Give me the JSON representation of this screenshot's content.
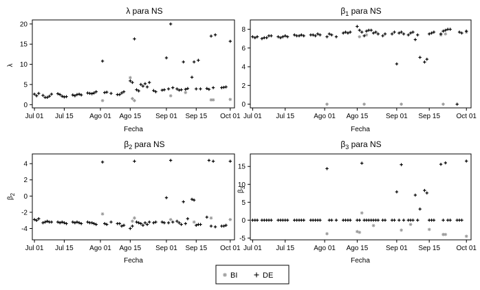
{
  "colors": {
    "BI": "#999999",
    "DE": "#000000"
  },
  "legend": {
    "placement": "bottom-center",
    "items": [
      {
        "label": "BI",
        "marker": "asterisk",
        "color": "#999999"
      },
      {
        "label": "DE",
        "marker": "plus",
        "color": "#000000"
      }
    ]
  },
  "chart_data": [
    {
      "type": "scatter",
      "title": "λ para NS",
      "xlabel": "Fecha",
      "ylabel": "λ",
      "xlim": [
        "2012-06-30",
        "2012-10-03"
      ],
      "ylim": [
        -0.8,
        21
      ],
      "x_ticks": [
        {
          "date": "2012-07-01",
          "label": "Jul 01"
        },
        {
          "date": "2012-07-15",
          "label": "Jul 15"
        },
        {
          "date": "2012-08-01",
          "label": "Ago 01"
        },
        {
          "date": "2012-08-15",
          "label": "Ago 15"
        },
        {
          "date": "2012-09-01",
          "label": "Sep 01"
        },
        {
          "date": "2012-09-15",
          "label": "Sep 15"
        },
        {
          "date": "2012-10-01",
          "label": "Oct 01"
        }
      ],
      "y_ticks": [
        0,
        5,
        10,
        15,
        20
      ],
      "grid": false,
      "series": [
        {
          "name": "BI",
          "x": [
            "2012-08-02",
            "2012-08-15",
            "2012-08-16",
            "2012-08-17",
            "2012-09-03",
            "2012-09-10",
            "2012-09-22",
            "2012-09-23",
            "2012-10-01"
          ],
          "y": [
            1.0,
            6.7,
            1.5,
            1.0,
            2.2,
            3.0,
            1.2,
            1.2,
            1.3
          ]
        },
        {
          "name": "DE",
          "x": [
            "2012-07-01",
            "2012-07-02",
            "2012-07-03",
            "2012-07-05",
            "2012-07-06",
            "2012-07-07",
            "2012-07-08",
            "2012-07-09",
            "2012-07-12",
            "2012-07-13",
            "2012-07-14",
            "2012-07-15",
            "2012-07-16",
            "2012-07-19",
            "2012-07-20",
            "2012-07-21",
            "2012-07-22",
            "2012-07-23",
            "2012-07-26",
            "2012-07-27",
            "2012-07-28",
            "2012-07-29",
            "2012-07-30",
            "2012-08-02",
            "2012-08-03",
            "2012-08-04",
            "2012-08-06",
            "2012-08-09",
            "2012-08-10",
            "2012-08-11",
            "2012-08-12",
            "2012-08-15",
            "2012-08-16",
            "2012-08-17",
            "2012-08-18",
            "2012-08-19",
            "2012-08-20",
            "2012-08-21",
            "2012-08-22",
            "2012-08-23",
            "2012-08-24",
            "2012-08-26",
            "2012-08-27",
            "2012-08-30",
            "2012-08-31",
            "2012-09-01",
            "2012-09-02",
            "2012-09-03",
            "2012-09-04",
            "2012-09-06",
            "2012-09-07",
            "2012-09-08",
            "2012-09-09",
            "2012-09-10",
            "2012-09-11",
            "2012-09-13",
            "2012-09-14",
            "2012-09-15",
            "2012-09-16",
            "2012-09-17",
            "2012-09-20",
            "2012-09-21",
            "2012-09-22",
            "2012-09-23",
            "2012-09-24",
            "2012-09-27",
            "2012-09-28",
            "2012-09-29",
            "2012-10-01"
          ],
          "y": [
            2.6,
            2.2,
            2.8,
            2.3,
            1.8,
            1.8,
            2.1,
            2.6,
            2.7,
            2.5,
            2.1,
            1.9,
            2.0,
            2.4,
            2.2,
            2.5,
            2.6,
            2.4,
            2.9,
            2.8,
            2.7,
            2.9,
            3.2,
            10.8,
            3.0,
            3.1,
            2.8,
            2.5,
            2.5,
            2.9,
            3.2,
            5.9,
            5.5,
            16.3,
            3.7,
            3.4,
            5.0,
            4.6,
            5.2,
            4.4,
            5.5,
            3.5,
            3.2,
            3.6,
            3.7,
            11.6,
            3.9,
            20.0,
            4.2,
            3.9,
            3.6,
            3.7,
            10.6,
            3.8,
            4.0,
            6.8,
            10.6,
            3.9,
            11.0,
            3.9,
            4.0,
            3.8,
            17.0,
            4.2,
            17.3,
            4.2,
            4.3,
            4.4,
            15.7
          ]
        }
      ]
    },
    {
      "type": "scatter",
      "title": "β1 para NS",
      "title_base": "β",
      "title_sub": "1",
      "title_rest": " para NS",
      "xlabel": "Fecha",
      "ylabel": "",
      "xlim": [
        "2012-06-30",
        "2012-10-03"
      ],
      "ylim": [
        -0.4,
        9.0
      ],
      "x_ticks": [
        {
          "date": "2012-07-01",
          "label": "Jul 01"
        },
        {
          "date": "2012-07-15",
          "label": "Jul 15"
        },
        {
          "date": "2012-08-01",
          "label": "Ago 01"
        },
        {
          "date": "2012-08-15",
          "label": "Ago 15"
        },
        {
          "date": "2012-09-01",
          "label": "Sep 01"
        },
        {
          "date": "2012-09-15",
          "label": "Sep 15"
        },
        {
          "date": "2012-10-01",
          "label": "Oct 01"
        }
      ],
      "y_ticks": [
        0,
        2,
        4,
        6,
        8
      ],
      "grid": false,
      "series": [
        {
          "name": "BI",
          "x": [
            "2012-08-02",
            "2012-08-16",
            "2012-08-18",
            "2012-08-19",
            "2012-09-03",
            "2012-09-20",
            "2012-09-21",
            "2012-09-22",
            "2012-10-01"
          ],
          "y": [
            0.0,
            7.2,
            0.0,
            7.4,
            0.0,
            7.4,
            0.0,
            7.5,
            7.7
          ]
        },
        {
          "name": "DE",
          "x": [
            "2012-07-01",
            "2012-07-02",
            "2012-07-03",
            "2012-07-05",
            "2012-07-06",
            "2012-07-07",
            "2012-07-08",
            "2012-07-09",
            "2012-07-12",
            "2012-07-13",
            "2012-07-14",
            "2012-07-15",
            "2012-07-16",
            "2012-07-19",
            "2012-07-20",
            "2012-07-21",
            "2012-07-22",
            "2012-07-23",
            "2012-07-26",
            "2012-07-27",
            "2012-07-28",
            "2012-07-29",
            "2012-07-30",
            "2012-08-02",
            "2012-08-03",
            "2012-08-04",
            "2012-08-06",
            "2012-08-09",
            "2012-08-10",
            "2012-08-11",
            "2012-08-12",
            "2012-08-15",
            "2012-08-16",
            "2012-08-17",
            "2012-08-18",
            "2012-08-19",
            "2012-08-20",
            "2012-08-21",
            "2012-08-22",
            "2012-08-23",
            "2012-08-24",
            "2012-08-26",
            "2012-08-27",
            "2012-08-30",
            "2012-08-31",
            "2012-09-01",
            "2012-09-02",
            "2012-09-03",
            "2012-09-04",
            "2012-09-06",
            "2012-09-07",
            "2012-09-08",
            "2012-09-09",
            "2012-09-10",
            "2012-09-11",
            "2012-09-13",
            "2012-09-14",
            "2012-09-15",
            "2012-09-16",
            "2012-09-17",
            "2012-09-20",
            "2012-09-21",
            "2012-09-22",
            "2012-09-23",
            "2012-09-24",
            "2012-09-27",
            "2012-09-28",
            "2012-09-29",
            "2012-10-01"
          ],
          "y": [
            7.2,
            7.1,
            7.2,
            7.0,
            7.1,
            7.1,
            7.3,
            7.3,
            7.2,
            7.1,
            7.2,
            7.3,
            7.2,
            7.4,
            7.3,
            7.3,
            7.4,
            7.3,
            7.4,
            7.4,
            7.3,
            7.5,
            7.4,
            7.2,
            7.5,
            7.4,
            7.2,
            7.6,
            7.7,
            7.6,
            7.7,
            8.3,
            7.9,
            7.7,
            7.3,
            7.8,
            7.9,
            7.9,
            7.6,
            7.7,
            7.5,
            7.3,
            7.5,
            7.5,
            7.7,
            4.3,
            7.6,
            7.7,
            7.5,
            7.4,
            7.6,
            7.7,
            6.9,
            7.4,
            5.0,
            4.5,
            4.8,
            7.5,
            7.6,
            7.7,
            7.5,
            7.8,
            7.9,
            8.0,
            8.0,
            0.0,
            7.7,
            7.6,
            7.8
          ]
        }
      ]
    },
    {
      "type": "scatter",
      "title": "β2 para NS",
      "title_base": "β",
      "title_sub": "2",
      "title_rest": " para NS",
      "xlabel": "Fecha",
      "ylabel": "β2",
      "ylabel_base": "β",
      "ylabel_sub": "2",
      "xlim": [
        "2012-06-30",
        "2012-10-03"
      ],
      "ylim": [
        -5.4,
        5.2
      ],
      "x_ticks": [
        {
          "date": "2012-07-01",
          "label": "Jul 01"
        },
        {
          "date": "2012-07-15",
          "label": "Jul 15"
        },
        {
          "date": "2012-08-01",
          "label": "Ago 01"
        },
        {
          "date": "2012-08-15",
          "label": "Ago 15"
        },
        {
          "date": "2012-09-01",
          "label": "Sep 01"
        },
        {
          "date": "2012-09-15",
          "label": "Sep 15"
        },
        {
          "date": "2012-10-01",
          "label": "Oct 01"
        }
      ],
      "y_ticks": [
        -4,
        -2,
        0,
        2,
        4
      ],
      "grid": false,
      "series": [
        {
          "name": "BI",
          "x": [
            "2012-08-02",
            "2012-08-16",
            "2012-08-17",
            "2012-09-03",
            "2012-09-14",
            "2012-09-22",
            "2012-10-01"
          ],
          "y": [
            -2.2,
            -3.1,
            -2.7,
            -2.9,
            -3.2,
            -2.7,
            -2.9
          ]
        },
        {
          "name": "DE",
          "x": [
            "2012-07-01",
            "2012-07-02",
            "2012-07-03",
            "2012-07-05",
            "2012-07-06",
            "2012-07-07",
            "2012-07-08",
            "2012-07-09",
            "2012-07-12",
            "2012-07-13",
            "2012-07-14",
            "2012-07-15",
            "2012-07-16",
            "2012-07-19",
            "2012-07-20",
            "2012-07-21",
            "2012-07-22",
            "2012-07-23",
            "2012-07-26",
            "2012-07-27",
            "2012-07-28",
            "2012-07-29",
            "2012-07-30",
            "2012-08-02",
            "2012-08-03",
            "2012-08-04",
            "2012-08-06",
            "2012-08-09",
            "2012-08-10",
            "2012-08-11",
            "2012-08-12",
            "2012-08-15",
            "2012-08-16",
            "2012-08-17",
            "2012-08-18",
            "2012-08-19",
            "2012-08-20",
            "2012-08-21",
            "2012-08-22",
            "2012-08-23",
            "2012-08-24",
            "2012-08-26",
            "2012-08-27",
            "2012-08-30",
            "2012-08-31",
            "2012-09-01",
            "2012-09-02",
            "2012-09-03",
            "2012-09-04",
            "2012-09-06",
            "2012-09-07",
            "2012-09-08",
            "2012-09-09",
            "2012-09-10",
            "2012-09-11",
            "2012-09-13",
            "2012-09-14",
            "2012-09-15",
            "2012-09-16",
            "2012-09-17",
            "2012-09-20",
            "2012-09-21",
            "2012-09-22",
            "2012-09-23",
            "2012-09-24",
            "2012-09-27",
            "2012-09-28",
            "2012-09-29",
            "2012-10-01"
          ],
          "y": [
            -2.9,
            -3.0,
            -2.8,
            -3.3,
            -3.2,
            -3.1,
            -3.2,
            -3.2,
            -3.2,
            -3.3,
            -3.2,
            -3.3,
            -3.4,
            -3.2,
            -3.3,
            -3.2,
            -3.3,
            -3.4,
            -3.2,
            -3.3,
            -3.3,
            -3.4,
            -3.5,
            4.2,
            -3.4,
            -3.5,
            -3.2,
            -3.4,
            -3.4,
            -3.7,
            -3.6,
            -4.0,
            -3.7,
            4.3,
            -3.2,
            -3.3,
            -3.4,
            -3.6,
            -3.3,
            -3.5,
            -3.2,
            -3.3,
            -3.2,
            -3.2,
            -3.3,
            -0.2,
            -3.3,
            4.4,
            -3.2,
            -3.1,
            -3.3,
            -3.5,
            -0.7,
            -3.4,
            -2.8,
            -0.4,
            -0.5,
            -3.6,
            -3.5,
            -3.5,
            -2.6,
            4.4,
            -3.7,
            4.3,
            -3.8,
            -3.7,
            -3.7,
            -3.6,
            4.3
          ]
        }
      ]
    },
    {
      "type": "scatter",
      "title": "β3 para NS",
      "title_base": "β",
      "title_sub": "3",
      "title_rest": " para NS",
      "xlabel": "Fecha",
      "ylabel": "β3",
      "ylabel_base": "β",
      "ylabel_sub": "3",
      "xlim": [
        "2012-06-30",
        "2012-10-03"
      ],
      "ylim": [
        -5.5,
        18.5
      ],
      "x_ticks": [
        {
          "date": "2012-07-01",
          "label": "Jul 01"
        },
        {
          "date": "2012-07-15",
          "label": "Jul 15"
        },
        {
          "date": "2012-08-01",
          "label": "Ago 01"
        },
        {
          "date": "2012-08-15",
          "label": "Ago 15"
        },
        {
          "date": "2012-09-01",
          "label": "Sep 01"
        },
        {
          "date": "2012-09-15",
          "label": "Sep 15"
        },
        {
          "date": "2012-10-01",
          "label": "Oct 01"
        }
      ],
      "y_ticks": [
        -5,
        0,
        5,
        10,
        15
      ],
      "grid": false,
      "series": [
        {
          "name": "BI",
          "x": [
            "2012-08-02",
            "2012-08-15",
            "2012-08-16",
            "2012-08-17",
            "2012-08-22",
            "2012-09-03",
            "2012-09-07",
            "2012-09-15",
            "2012-09-21",
            "2012-09-22",
            "2012-10-01"
          ],
          "y": [
            -3.8,
            -3.2,
            -3.4,
            2.0,
            -1.5,
            -2.8,
            -1.2,
            -2.6,
            -4.0,
            -4.0,
            -4.5
          ]
        },
        {
          "name": "DE",
          "x": [
            "2012-07-01",
            "2012-07-02",
            "2012-07-03",
            "2012-07-05",
            "2012-07-06",
            "2012-07-07",
            "2012-07-08",
            "2012-07-09",
            "2012-07-12",
            "2012-07-13",
            "2012-07-14",
            "2012-07-15",
            "2012-07-16",
            "2012-07-19",
            "2012-07-20",
            "2012-07-21",
            "2012-07-22",
            "2012-07-23",
            "2012-07-26",
            "2012-07-27",
            "2012-07-28",
            "2012-07-29",
            "2012-07-30",
            "2012-08-02",
            "2012-08-03",
            "2012-08-04",
            "2012-08-06",
            "2012-08-09",
            "2012-08-10",
            "2012-08-11",
            "2012-08-12",
            "2012-08-15",
            "2012-08-16",
            "2012-08-17",
            "2012-08-18",
            "2012-08-19",
            "2012-08-20",
            "2012-08-21",
            "2012-08-22",
            "2012-08-23",
            "2012-08-24",
            "2012-08-26",
            "2012-08-27",
            "2012-08-30",
            "2012-08-31",
            "2012-09-01",
            "2012-09-02",
            "2012-09-03",
            "2012-09-04",
            "2012-09-06",
            "2012-09-07",
            "2012-09-08",
            "2012-09-09",
            "2012-09-10",
            "2012-09-11",
            "2012-09-13",
            "2012-09-14",
            "2012-09-15",
            "2012-09-16",
            "2012-09-17",
            "2012-09-20",
            "2012-09-21",
            "2012-09-22",
            "2012-09-23",
            "2012-09-24",
            "2012-09-27",
            "2012-09-28",
            "2012-09-29",
            "2012-10-01"
          ],
          "y": [
            0,
            0,
            0,
            0,
            0,
            0,
            0,
            0,
            0,
            0,
            0,
            0,
            0,
            0,
            0,
            0,
            0,
            0,
            0,
            0,
            0,
            0,
            0,
            14.4,
            0,
            0,
            0,
            0,
            0,
            0,
            0,
            0,
            0,
            15.9,
            0,
            0,
            0,
            0,
            0,
            0,
            0,
            0,
            0,
            0,
            0,
            7.9,
            0,
            15.5,
            0,
            0,
            0,
            0,
            7.0,
            0,
            3.1,
            8.3,
            7.6,
            0,
            0,
            0,
            15.6,
            0,
            16.0,
            0,
            0,
            0,
            0,
            0,
            16.5
          ]
        }
      ]
    }
  ]
}
